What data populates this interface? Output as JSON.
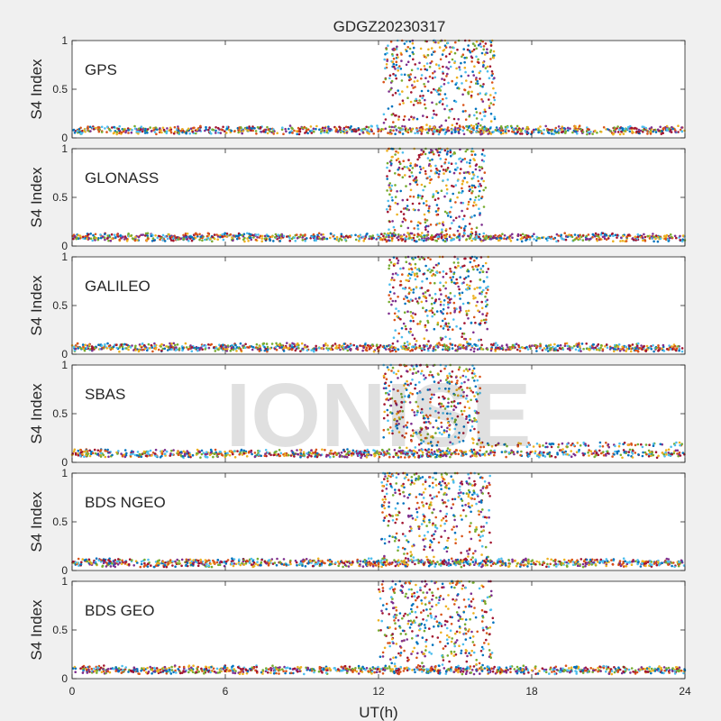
{
  "figure": {
    "title": "GDGZ20230317",
    "xlabel": "UT(h)",
    "watermark": "IONISE",
    "background": "#f0f0f0",
    "panel_background": "#ffffff"
  },
  "chart_data": {
    "type": "scatter",
    "title": "GDGZ20230317",
    "xlabel": "UT(h)",
    "xlim": [
      0,
      24
    ],
    "xticks": [
      0,
      6,
      12,
      18,
      24
    ],
    "grid": false,
    "colors": [
      "#0072bd",
      "#d95319",
      "#edb120",
      "#7e2f8e",
      "#77ac30",
      "#4dbeee",
      "#a2142f"
    ],
    "panels": [
      {
        "name": "GPS",
        "ylabel": "S4 Index",
        "ylim": [
          0,
          1
        ],
        "yticks": [
          0,
          0.5,
          1
        ],
        "active_window": [
          12.2,
          16.6
        ],
        "baseline": 0.08,
        "scint_level": 0.55
      },
      {
        "name": "GLONASS",
        "ylabel": "S4 Index",
        "ylim": [
          0,
          1
        ],
        "yticks": [
          0,
          0.5,
          1
        ],
        "active_window": [
          12.3,
          16.2
        ],
        "baseline": 0.09,
        "scint_level": 0.55
      },
      {
        "name": "GALILEO",
        "ylabel": "S4 Index",
        "ylim": [
          0,
          1
        ],
        "yticks": [
          0,
          0.5,
          1
        ],
        "active_window": [
          12.4,
          16.3
        ],
        "baseline": 0.07,
        "scint_level": 0.5
      },
      {
        "name": "SBAS",
        "ylabel": "S4 Index",
        "ylim": [
          0,
          1
        ],
        "yticks": [
          0,
          0.5,
          1
        ],
        "active_window": [
          12.2,
          16.0
        ],
        "baseline": 0.09,
        "scint_level": 0.6
      },
      {
        "name": "BDS NGEO",
        "ylabel": "S4 Index",
        "ylim": [
          0,
          1
        ],
        "yticks": [
          0,
          0.5,
          1
        ],
        "active_window": [
          12.1,
          16.4
        ],
        "baseline": 0.08,
        "scint_level": 0.6
      },
      {
        "name": "BDS GEO",
        "ylabel": "S4 Index",
        "ylim": [
          0,
          1
        ],
        "yticks": [
          0,
          0.5,
          1
        ],
        "active_window": [
          12.0,
          16.5
        ],
        "baseline": 0.09,
        "scint_level": 0.6
      }
    ]
  }
}
